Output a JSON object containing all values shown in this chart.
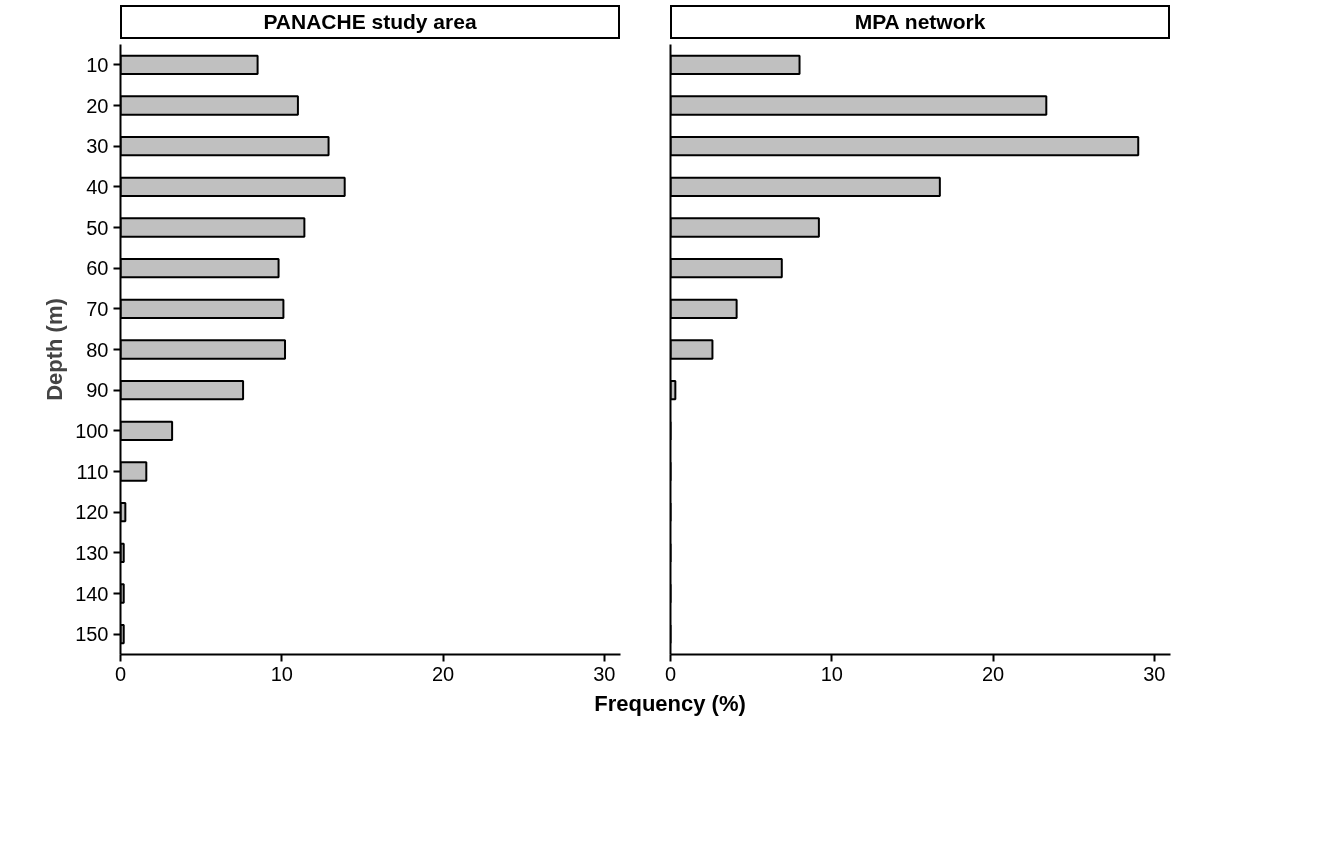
{
  "chart_data": [
    {
      "type": "bar",
      "orientation": "horizontal",
      "title": "PANACHE study area",
      "ylabel": "Depth (m)",
      "xlabel": "Frequency (%)",
      "categories": [
        "10",
        "20",
        "30",
        "40",
        "50",
        "60",
        "70",
        "80",
        "90",
        "100",
        "110",
        "120",
        "130",
        "140",
        "150"
      ],
      "values": [
        8.5,
        11.0,
        12.9,
        13.9,
        11.4,
        9.8,
        10.1,
        10.2,
        7.6,
        3.2,
        1.6,
        0.3,
        0.2,
        0.2,
        0.2
      ],
      "color": "#c0c0c0",
      "xlim": [
        0,
        31
      ],
      "xticks": [
        0,
        10,
        20,
        30
      ],
      "grid": false
    },
    {
      "type": "bar",
      "orientation": "horizontal",
      "title": "MPA network",
      "tick_labels": "x",
      "categories": [
        "10",
        "20",
        "30",
        "40",
        "50",
        "60",
        "70",
        "80",
        "90",
        "100",
        "110",
        "120",
        "130",
        "140",
        "150"
      ],
      "values": [
        8.0,
        23.3,
        29.0,
        16.7,
        9.2,
        6.9,
        4.1,
        2.6,
        0.3,
        0,
        0,
        0,
        0,
        0,
        0
      ],
      "color": "#c0c0c0",
      "xlim": [
        0,
        31
      ],
      "xticks": [
        0,
        10,
        20,
        30
      ],
      "grid": false
    }
  ]
}
